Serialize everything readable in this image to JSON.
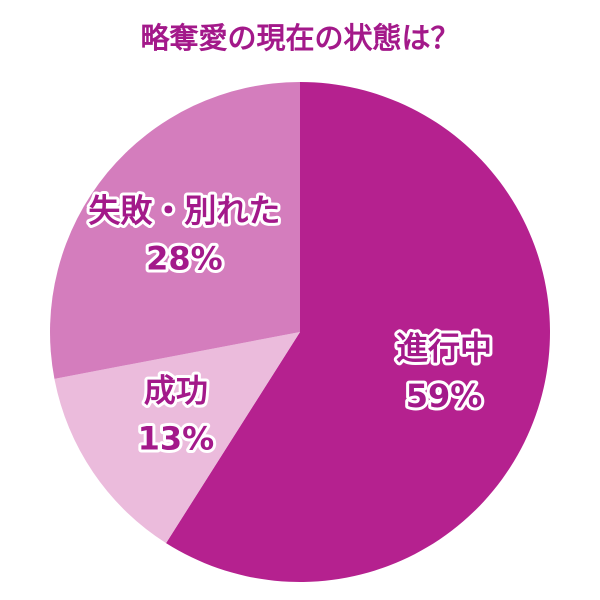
{
  "chart_data": {
    "type": "pie",
    "title": "略奪愛の現在の状態は？",
    "categories": [
      "進行中",
      "成功",
      "失敗・別れた"
    ],
    "values": [
      59,
      13,
      28
    ],
    "value_labels": [
      "59%",
      "13%",
      "28%"
    ],
    "colors": [
      "#b5218f",
      "#ebbbdc",
      "#d47dbd"
    ]
  }
}
